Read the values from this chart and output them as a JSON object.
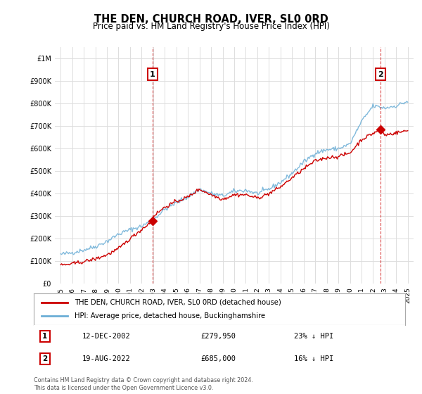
{
  "title": "THE DEN, CHURCH ROAD, IVER, SL0 0RD",
  "subtitle": "Price paid vs. HM Land Registry's House Price Index (HPI)",
  "hpi_label": "HPI: Average price, detached house, Buckinghamshire",
  "property_label": "THE DEN, CHURCH ROAD, IVER, SL0 0RD (detached house)",
  "footnote": "Contains HM Land Registry data © Crown copyright and database right 2024.\nThis data is licensed under the Open Government Licence v3.0.",
  "sale1_label": "12-DEC-2002",
  "sale1_price": "£279,950",
  "sale1_hpi": "23% ↓ HPI",
  "sale2_label": "19-AUG-2022",
  "sale2_price": "£685,000",
  "sale2_hpi": "16% ↓ HPI",
  "sale1_year": 2002.95,
  "sale2_year": 2022.63,
  "sale1_value": 279950,
  "sale2_value": 685000,
  "ylim": [
    0,
    1050000
  ],
  "xlim": [
    1994.5,
    2025.5
  ],
  "hpi_color": "#6baed6",
  "property_color": "#cc0000",
  "dashed_color": "#cc0000",
  "bg_color": "#ffffff",
  "grid_color": "#dddddd"
}
